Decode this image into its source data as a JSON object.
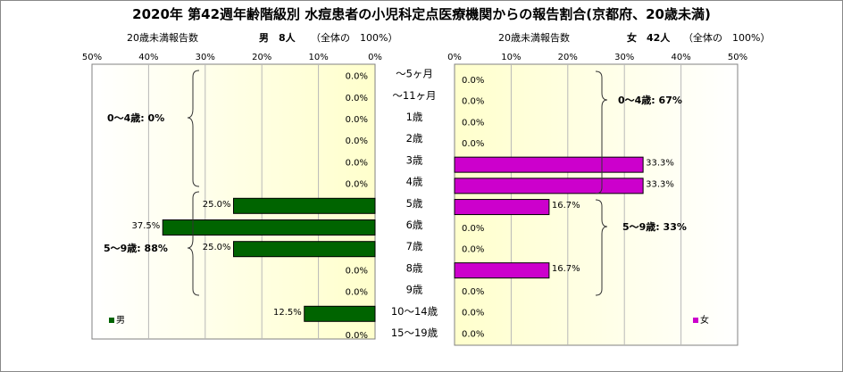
{
  "title": "2020年 第42週年齢階級別 水痘患者の小児科定点医療機関からの報告割合(京都府、20歳未満)",
  "categories": [
    "～5ヶ月",
    "～11ヶ月",
    "1歳",
    "2歳",
    "3歳",
    "4歳",
    "5歳",
    "6歳",
    "7歳",
    "8歳",
    "9歳",
    "10～14歳",
    "15～19歳"
  ],
  "left_panel": {
    "subtitle_report": "20歳未満報告数",
    "subtitle_sex": "男　8人",
    "subtitle_total": "（全体の　100%）",
    "legend": "男",
    "bar_color": "#006400",
    "group_labels": [
      "0～4歳: 0%",
      "5～9歳: 88%"
    ]
  },
  "right_panel": {
    "subtitle_report": "20歳未満報告数",
    "subtitle_sex": "女　42人",
    "subtitle_total": "（全体の　100%）",
    "legend": "女",
    "bar_color": "#cc00cc",
    "group_labels": [
      "0～4歳: 67%",
      "5～9歳: 33%"
    ]
  },
  "chart_data": [
    {
      "type": "bar",
      "orientation": "horizontal",
      "x_direction": "reversed",
      "categories": [
        "～5ヶ月",
        "～11ヶ月",
        "1歳",
        "2歳",
        "3歳",
        "4歳",
        "5歳",
        "6歳",
        "7歳",
        "8歳",
        "9歳",
        "10～14歳",
        "15～19歳"
      ],
      "series": [
        {
          "name": "男",
          "values": [
            0.0,
            0.0,
            0.0,
            0.0,
            0.0,
            0.0,
            25.0,
            37.5,
            25.0,
            0.0,
            0.0,
            12.5,
            0.0
          ]
        }
      ],
      "value_labels": [
        "0.0%",
        "0.0%",
        "0.0%",
        "0.0%",
        "0.0%",
        "0.0%",
        "25.0%",
        "37.5%",
        "25.0%",
        "0.0%",
        "0.0%",
        "12.5%",
        "0.0%"
      ],
      "xticks": [
        "50%",
        "40%",
        "30%",
        "20%",
        "10%",
        "0%"
      ],
      "xlim": [
        0,
        50
      ],
      "grid": true,
      "legend_position": "bottom-left"
    },
    {
      "type": "bar",
      "orientation": "horizontal",
      "categories": [
        "～5ヶ月",
        "～11ヶ月",
        "1歳",
        "2歳",
        "3歳",
        "4歳",
        "5歳",
        "6歳",
        "7歳",
        "8歳",
        "9歳",
        "10～14歳",
        "15～19歳"
      ],
      "series": [
        {
          "name": "女",
          "values": [
            0.0,
            0.0,
            0.0,
            0.0,
            33.3,
            33.3,
            16.7,
            0.0,
            0.0,
            16.7,
            0.0,
            0.0,
            0.0
          ]
        }
      ],
      "value_labels": [
        "0.0%",
        "0.0%",
        "0.0%",
        "0.0%",
        "33.3%",
        "33.3%",
        "16.7%",
        "0.0%",
        "0.0%",
        "16.7%",
        "0.0%",
        "0.0%",
        "0.0%"
      ],
      "xticks": [
        "0%",
        "10%",
        "20%",
        "30%",
        "40%",
        "50%"
      ],
      "xlim": [
        0,
        50
      ],
      "grid": true,
      "legend_position": "bottom-right"
    }
  ]
}
